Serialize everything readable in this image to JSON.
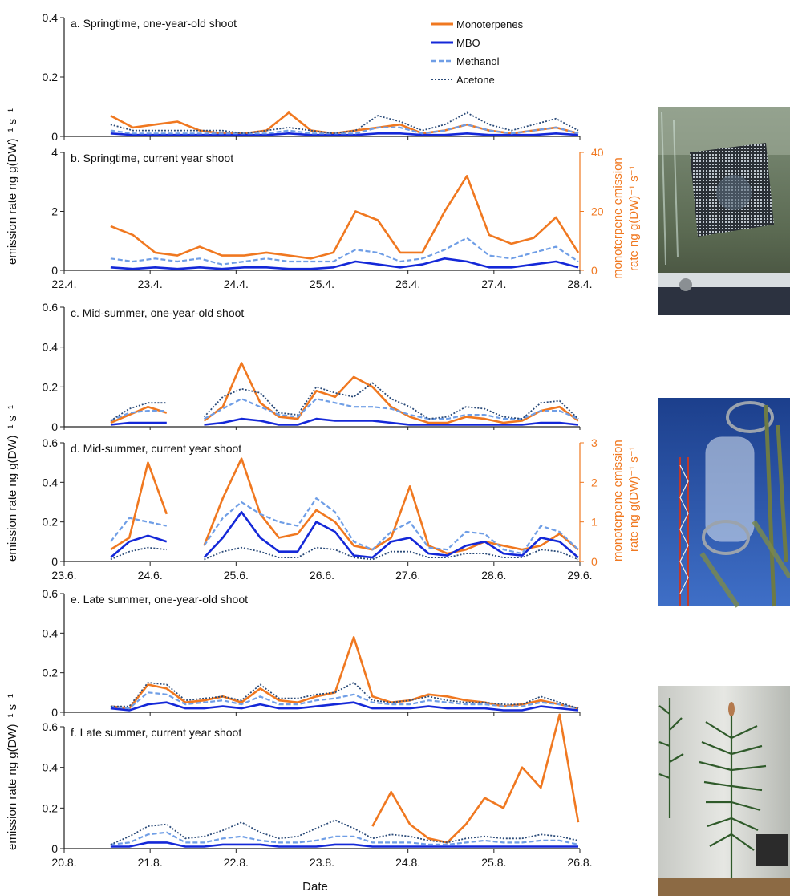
{
  "legend": {
    "monoterpenes": "Monoterpenes",
    "mbo": "MBO",
    "methanol": "Methanol",
    "acetone": "Acetone"
  },
  "colors": {
    "monoterpenes": "#f07820",
    "mbo": "#1428d8",
    "methanol": "#6f9ee6",
    "acetone": "#2a4a78",
    "right_axis": "#f07820"
  },
  "y_axis_label": "emission rate ng g(DW)⁻¹ s⁻¹",
  "right_axis_label_line1": "monoterpene emission",
  "right_axis_label_line2": "rate ng g(DW)⁻¹ s⁻¹",
  "x_axis_label": "Date",
  "photos": [
    "shoot-chamber-spring-photo",
    "shoot-chamber-tower-photo",
    "shoot-chamber-pine-photo"
  ],
  "chart_data": [
    {
      "type": "line",
      "panel": "a",
      "title": "a. Springtime, one-year-old shoot",
      "ylim": [
        0,
        0.4
      ],
      "yticks": [
        "0",
        "0.2",
        "0.4"
      ],
      "x_range": [
        "22.4.",
        "28.4."
      ],
      "series": [
        {
          "name": "Monoterpenes",
          "x": [
            "22.4.18h",
            "23.4.00h",
            "23.4.06h",
            "23.4.12h",
            "23.4.18h",
            "24.4.00h",
            "24.4.06h",
            "24.4.12h",
            "24.4.18h",
            "25.4.00h",
            "25.4.06h",
            "25.4.12h",
            "25.4.18h",
            "26.4.00h",
            "26.4.06h",
            "26.4.12h",
            "26.4.18h",
            "27.4.00h",
            "27.4.06h",
            "27.4.12h",
            "27.4.18h",
            "28.4.00h"
          ],
          "values": [
            0.07,
            0.03,
            0.04,
            0.05,
            0.02,
            0.01,
            0.01,
            0.02,
            0.08,
            0.02,
            0.01,
            0.02,
            0.03,
            0.04,
            0.01,
            0.02,
            0.04,
            0.02,
            0.01,
            0.02,
            0.03,
            0.01
          ]
        },
        {
          "name": "MBO",
          "values": [
            0.01,
            0.005,
            0.005,
            0.005,
            0.005,
            0.005,
            0.005,
            0.005,
            0.01,
            0.005,
            0.005,
            0.005,
            0.01,
            0.01,
            0.005,
            0.005,
            0.01,
            0.005,
            0.005,
            0.005,
            0.01,
            0.005
          ]
        },
        {
          "name": "Methanol",
          "values": [
            0.02,
            0.01,
            0.01,
            0.01,
            0.01,
            0.01,
            0.01,
            0.01,
            0.02,
            0.01,
            0.01,
            0.01,
            0.03,
            0.03,
            0.01,
            0.02,
            0.04,
            0.02,
            0.01,
            0.02,
            0.03,
            0.01
          ]
        },
        {
          "name": "Acetone",
          "values": [
            0.04,
            0.02,
            0.02,
            0.02,
            0.02,
            0.02,
            0.01,
            0.02,
            0.03,
            0.02,
            0.01,
            0.02,
            0.07,
            0.05,
            0.02,
            0.04,
            0.08,
            0.04,
            0.02,
            0.04,
            0.06,
            0.02
          ]
        }
      ]
    },
    {
      "type": "line",
      "panel": "b",
      "title": "b. Springtime, current year shoot",
      "ylim": [
        0,
        4
      ],
      "yticks": [
        "0",
        "2",
        "4"
      ],
      "y2lim": [
        0,
        40
      ],
      "y2ticks": [
        "0",
        "20",
        "40"
      ],
      "xticks": [
        "22.4.",
        "23.4.",
        "24.4.",
        "25.4.",
        "26.4.",
        "27.4.",
        "28.4."
      ],
      "x_range": [
        "22.4.",
        "28.4."
      ],
      "series": [
        {
          "name": "Monoterpenes",
          "axis": "right",
          "values": [
            15,
            12,
            6,
            5,
            8,
            5,
            5,
            6,
            5,
            4,
            6,
            20,
            17,
            6,
            6,
            20,
            32,
            12,
            9,
            11,
            18,
            6
          ]
        },
        {
          "name": "MBO",
          "values": [
            0.1,
            0.05,
            0.1,
            0.05,
            0.1,
            0.05,
            0.1,
            0.1,
            0.05,
            0.05,
            0.1,
            0.3,
            0.2,
            0.1,
            0.2,
            0.4,
            0.3,
            0.1,
            0.1,
            0.2,
            0.3,
            0.1
          ]
        },
        {
          "name": "Methanol",
          "values": [
            0.4,
            0.3,
            0.4,
            0.3,
            0.4,
            0.2,
            0.3,
            0.4,
            0.3,
            0.3,
            0.3,
            0.7,
            0.6,
            0.3,
            0.4,
            0.7,
            1.1,
            0.5,
            0.4,
            0.6,
            0.8,
            0.3
          ]
        },
        {
          "name": "Acetone",
          "values": []
        }
      ]
    },
    {
      "type": "line",
      "panel": "c",
      "title": "c. Mid-summer, one-year-old shoot",
      "ylim": [
        0,
        0.6
      ],
      "yticks": [
        "0",
        "0.2",
        "0.4",
        "0.6"
      ],
      "x_range": [
        "23.6.",
        "29.6."
      ],
      "series": [
        {
          "name": "Monoterpenes",
          "values": [
            0.02,
            0.06,
            0.1,
            0.07,
            null,
            0.03,
            0.1,
            0.32,
            0.12,
            0.05,
            0.04,
            0.18,
            0.15,
            0.25,
            0.2,
            0.1,
            0.05,
            0.02,
            0.02,
            0.05,
            0.04,
            0.02,
            0.03,
            0.08,
            0.1,
            0.03
          ]
        },
        {
          "name": "MBO",
          "values": [
            0.01,
            0.02,
            0.02,
            0.02,
            null,
            0.01,
            0.02,
            0.04,
            0.03,
            0.01,
            0.01,
            0.04,
            0.03,
            0.03,
            0.03,
            0.02,
            0.01,
            0.01,
            0.01,
            0.01,
            0.01,
            0.01,
            0.01,
            0.02,
            0.02,
            0.01
          ]
        },
        {
          "name": "Methanol",
          "values": [
            0.03,
            0.07,
            0.08,
            0.08,
            null,
            0.04,
            0.09,
            0.14,
            0.1,
            0.06,
            0.05,
            0.14,
            0.12,
            0.1,
            0.1,
            0.09,
            0.06,
            0.04,
            0.04,
            0.06,
            0.06,
            0.04,
            0.04,
            0.08,
            0.08,
            0.04
          ]
        },
        {
          "name": "Acetone",
          "values": [
            0.03,
            0.09,
            0.12,
            0.12,
            null,
            0.05,
            0.15,
            0.19,
            0.17,
            0.07,
            0.06,
            0.2,
            0.17,
            0.15,
            0.22,
            0.14,
            0.1,
            0.04,
            0.05,
            0.1,
            0.09,
            0.05,
            0.04,
            0.12,
            0.13,
            0.04
          ]
        }
      ]
    },
    {
      "type": "line",
      "panel": "d",
      "title": "d. Mid-summer, current  year shoot",
      "ylim": [
        0,
        0.6
      ],
      "yticks": [
        "0",
        "0.2",
        "0.4",
        "0.6"
      ],
      "y2lim": [
        0,
        3
      ],
      "y2ticks": [
        "0",
        "1",
        "2",
        "3"
      ],
      "xticks": [
        "23.6.",
        "24.6.",
        "25.6.",
        "26.6.",
        "27.6.",
        "28.6.",
        "29.6."
      ],
      "x_range": [
        "23.6.",
        "29.6."
      ],
      "series": [
        {
          "name": "Monoterpenes",
          "axis": "right",
          "values": [
            0.3,
            0.6,
            2.5,
            1.2,
            null,
            0.4,
            1.6,
            2.6,
            1.2,
            0.6,
            0.7,
            1.3,
            1.0,
            0.4,
            0.3,
            0.6,
            1.9,
            0.4,
            0.2,
            0.3,
            0.5,
            0.4,
            0.3,
            0.4,
            0.7,
            0.3
          ]
        },
        {
          "name": "MBO",
          "values": [
            0.02,
            0.1,
            0.13,
            0.1,
            null,
            0.02,
            0.12,
            0.25,
            0.12,
            0.05,
            0.05,
            0.2,
            0.15,
            0.03,
            0.02,
            0.1,
            0.12,
            0.04,
            0.03,
            0.08,
            0.1,
            0.04,
            0.03,
            0.12,
            0.1,
            0.02
          ]
        },
        {
          "name": "Methanol",
          "values": [
            0.1,
            0.22,
            0.2,
            0.18,
            null,
            0.08,
            0.22,
            0.3,
            0.24,
            0.2,
            0.18,
            0.32,
            0.25,
            0.1,
            0.06,
            0.15,
            0.2,
            0.07,
            0.06,
            0.15,
            0.14,
            0.06,
            0.04,
            0.18,
            0.15,
            0.06
          ]
        },
        {
          "name": "Acetone",
          "values": [
            0.01,
            0.05,
            0.07,
            0.06,
            null,
            0.01,
            0.05,
            0.07,
            0.05,
            0.02,
            0.02,
            0.07,
            0.06,
            0.02,
            0.01,
            0.05,
            0.05,
            0.02,
            0.02,
            0.04,
            0.04,
            0.02,
            0.02,
            0.06,
            0.05,
            0.01
          ]
        }
      ]
    },
    {
      "type": "line",
      "panel": "e",
      "title": "e. Late summer,  one-year-old shoot",
      "ylim": [
        0,
        0.6
      ],
      "yticks": [
        "0",
        "0.2",
        "0.4",
        "0.6"
      ],
      "x_range": [
        "20.8.",
        "26.8."
      ],
      "series": [
        {
          "name": "Monoterpenes",
          "values": [
            0.03,
            0.02,
            0.14,
            0.12,
            0.05,
            0.06,
            0.08,
            0.05,
            0.12,
            0.06,
            0.05,
            0.08,
            0.1,
            0.38,
            0.08,
            0.05,
            0.06,
            0.09,
            0.08,
            0.06,
            0.05,
            0.03,
            0.04,
            0.06,
            0.04,
            0.02
          ]
        },
        {
          "name": "MBO",
          "values": [
            0.02,
            0.01,
            0.04,
            0.05,
            0.02,
            0.02,
            0.03,
            0.02,
            0.04,
            0.02,
            0.02,
            0.03,
            0.04,
            0.05,
            0.02,
            0.02,
            0.02,
            0.03,
            0.02,
            0.02,
            0.02,
            0.01,
            0.01,
            0.03,
            0.02,
            0.01
          ]
        },
        {
          "name": "Methanol",
          "values": [
            0.03,
            0.02,
            0.1,
            0.09,
            0.04,
            0.05,
            0.06,
            0.04,
            0.08,
            0.04,
            0.04,
            0.06,
            0.07,
            0.09,
            0.05,
            0.04,
            0.04,
            0.06,
            0.05,
            0.04,
            0.04,
            0.03,
            0.03,
            0.05,
            0.04,
            0.02
          ]
        },
        {
          "name": "Acetone",
          "values": [
            0.03,
            0.03,
            0.15,
            0.14,
            0.06,
            0.07,
            0.08,
            0.06,
            0.14,
            0.07,
            0.07,
            0.09,
            0.1,
            0.15,
            0.06,
            0.05,
            0.06,
            0.08,
            0.06,
            0.05,
            0.05,
            0.04,
            0.04,
            0.08,
            0.05,
            0.02
          ]
        }
      ]
    },
    {
      "type": "line",
      "panel": "f",
      "title": "f. Late summer, current year shoot",
      "ylim": [
        0,
        0.6
      ],
      "yticks": [
        "0",
        "0.2",
        "0.4",
        "0.6"
      ],
      "xticks": [
        "20.8.",
        "21.8.",
        "22.8.",
        "23.8.",
        "24.8.",
        "25.8.",
        "26.8."
      ],
      "x_range": [
        "20.8.",
        "26.8."
      ],
      "series": [
        {
          "name": "Monoterpenes",
          "values": [
            null,
            null,
            null,
            null,
            null,
            null,
            null,
            null,
            null,
            null,
            null,
            null,
            null,
            null,
            0.11,
            0.28,
            0.12,
            0.05,
            0.03,
            0.12,
            0.25,
            0.2,
            0.4,
            0.3,
            0.66,
            0.13
          ]
        },
        {
          "name": "MBO",
          "values": [
            0.01,
            0.01,
            0.03,
            0.03,
            0.01,
            0.01,
            0.02,
            0.02,
            0.02,
            0.01,
            0.01,
            0.01,
            0.02,
            0.02,
            0.01,
            0.01,
            0.01,
            0.01,
            0.01,
            0.01,
            0.01,
            0.01,
            0.01,
            0.01,
            0.01,
            0.01
          ]
        },
        {
          "name": "Methanol",
          "values": [
            0.02,
            0.03,
            0.07,
            0.08,
            0.03,
            0.03,
            0.05,
            0.06,
            0.04,
            0.03,
            0.03,
            0.04,
            0.06,
            0.06,
            0.03,
            0.03,
            0.03,
            0.02,
            0.02,
            0.03,
            0.04,
            0.03,
            0.03,
            0.04,
            0.04,
            0.02
          ]
        },
        {
          "name": "Acetone",
          "values": [
            0.02,
            0.06,
            0.11,
            0.12,
            0.05,
            0.06,
            0.09,
            0.13,
            0.08,
            0.05,
            0.06,
            0.1,
            0.14,
            0.1,
            0.05,
            0.07,
            0.06,
            0.04,
            0.03,
            0.05,
            0.06,
            0.05,
            0.05,
            0.07,
            0.06,
            0.04
          ]
        }
      ]
    }
  ]
}
